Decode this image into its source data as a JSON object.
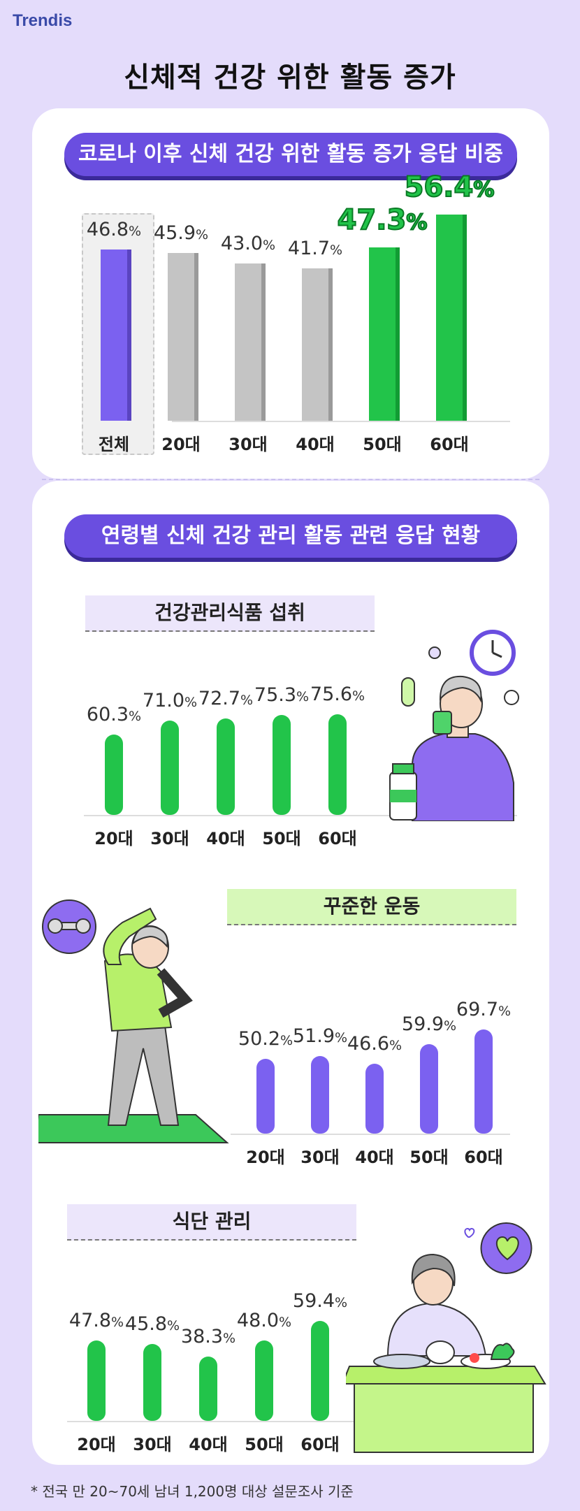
{
  "brand": "Trendis",
  "title": "신체적 건강 위한 활동 증가",
  "section1": {
    "pill": "코로나 이후 신체 건강 위한 활동 증가 응답 비중"
  },
  "section2": {
    "pill": "연령별 신체 건강 관리 활동 관련 응답 현황"
  },
  "footnote": "* 전국 만 20~70세 남녀 1,200명 대상 설문조사 기준",
  "colors": {
    "purple": "#6a4ee0",
    "green": "#22c44a",
    "gray": "#c4c4c4",
    "violet": "#7b61f0"
  },
  "chart_data": [
    {
      "type": "bar",
      "title": "코로나 이후 신체 건강 위한 활동 증가 응답 비중",
      "categories": [
        "전체",
        "20대",
        "30대",
        "40대",
        "50대",
        "60대"
      ],
      "values": [
        46.8,
        45.9,
        43.0,
        41.7,
        47.3,
        56.4
      ],
      "labels": [
        "46.8",
        "45.9",
        "43.0",
        "41.7",
        "47.3",
        "56.4"
      ],
      "unit": "%",
      "ylim": [
        0,
        60
      ]
    },
    {
      "type": "bar",
      "title": "건강관리식품 섭취",
      "categories": [
        "20대",
        "30대",
        "40대",
        "50대",
        "60대"
      ],
      "values": [
        60.3,
        71.0,
        72.7,
        75.3,
        75.6
      ],
      "labels": [
        "60.3",
        "71.0",
        "72.7",
        "75.3",
        "75.6"
      ],
      "unit": "%",
      "ylim": [
        0,
        100
      ]
    },
    {
      "type": "bar",
      "title": "꾸준한 운동",
      "categories": [
        "20대",
        "30대",
        "40대",
        "50대",
        "60대"
      ],
      "values": [
        50.2,
        51.9,
        46.6,
        59.9,
        69.7
      ],
      "labels": [
        "50.2",
        "51.9",
        "46.6",
        "59.9",
        "69.7"
      ],
      "unit": "%",
      "ylim": [
        0,
        100
      ]
    },
    {
      "type": "bar",
      "title": "식단 관리",
      "categories": [
        "20대",
        "30대",
        "40대",
        "50대",
        "60대"
      ],
      "values": [
        47.8,
        45.8,
        38.3,
        48.0,
        59.4
      ],
      "labels": [
        "47.8",
        "45.8",
        "38.3",
        "48.0",
        "59.4"
      ],
      "unit": "%",
      "ylim": [
        0,
        100
      ]
    }
  ]
}
